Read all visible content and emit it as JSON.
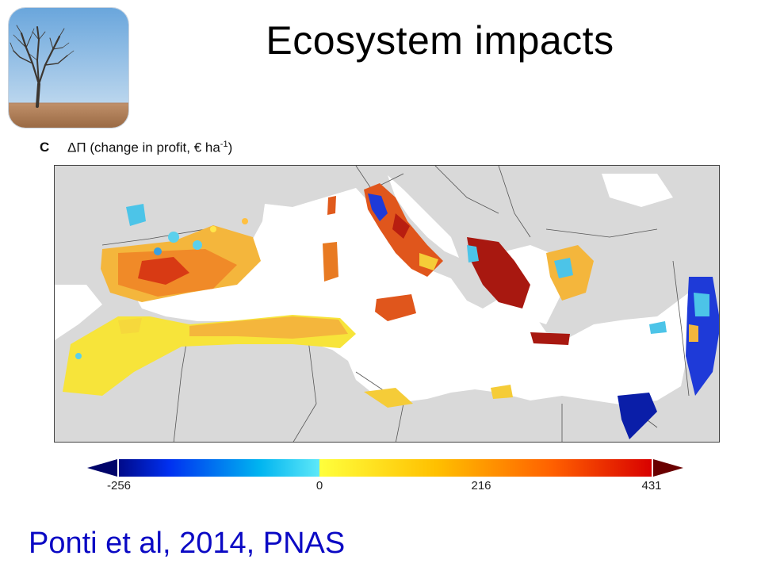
{
  "slide": {
    "title": "Ecosystem impacts",
    "citation": "Ponti et al, 2014, PNAS"
  },
  "figure": {
    "panel_letter": "C",
    "title_prefix": "ΔΠ (change in profit, € ha",
    "title_superscript": "-1",
    "title_suffix": ")",
    "colorbar": {
      "ticks": [
        "-256",
        "0",
        "216",
        "431"
      ],
      "min": -256,
      "max": 431,
      "colors": [
        "#000a8a",
        "#0030f0",
        "#00b4f0",
        "#5ee8f8",
        "#ffff3c",
        "#ffc000",
        "#ff6000",
        "#d80000",
        "#7a0000"
      ]
    }
  },
  "thumbnail": {
    "icon": "bare-tree-field-photo"
  }
}
